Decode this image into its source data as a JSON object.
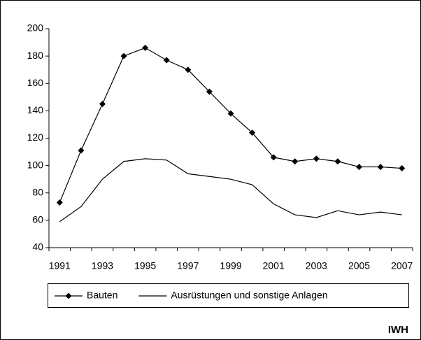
{
  "chart_data": {
    "type": "line",
    "categories": [
      "1991",
      null,
      "1993",
      null,
      "1995",
      null,
      "1997",
      null,
      "1999",
      null,
      "2001",
      null,
      "2003",
      null,
      "2005",
      null,
      "2007"
    ],
    "series": [
      {
        "name": "Bauten",
        "color": "#000000",
        "marker": "diamond",
        "values": [
          73,
          111,
          145,
          180,
          186,
          177,
          170,
          154,
          138,
          124,
          106,
          103,
          105,
          103,
          99,
          99,
          98
        ]
      },
      {
        "name": "Ausrüstungen und sonstige Anlagen",
        "color": "#000000",
        "values": [
          59,
          70,
          90,
          103,
          105,
          104,
          94,
          92,
          90,
          86,
          72,
          64,
          62,
          67,
          64,
          66,
          64
        ]
      }
    ],
    "ylim": [
      40,
      200
    ],
    "yticks": [
      40,
      60,
      80,
      100,
      120,
      140,
      160,
      180,
      200
    ],
    "grid": false,
    "legend": "bottom",
    "annotation": "IWH"
  }
}
